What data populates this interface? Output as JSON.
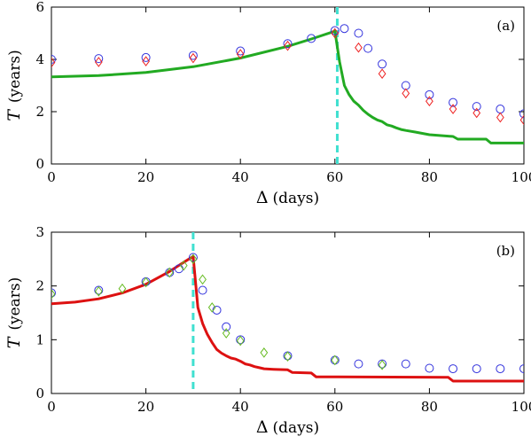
{
  "chart_data": [
    {
      "type": "scatter",
      "panel_label": "(a)",
      "xlabel_symbol": "Δ",
      "xlabel_unit": "(days)",
      "ylabel_symbol": "T",
      "ylabel_unit": "(years)",
      "xlim": [
        0,
        100
      ],
      "ylim": [
        0,
        6
      ],
      "xticks": [
        "0",
        "20",
        "40",
        "60",
        "80",
        "100"
      ],
      "yticks": [
        "0",
        "2",
        "4",
        "6"
      ],
      "xtick_values": [
        0,
        20,
        40,
        60,
        80,
        100
      ],
      "ytick_values": [
        0,
        2,
        4,
        6
      ],
      "vline": {
        "x": 60.5,
        "color": "#40e0d0"
      },
      "series": [
        {
          "kind": "line",
          "color": "#22aa22",
          "points": [
            [
              0,
              3.33
            ],
            [
              10,
              3.38
            ],
            [
              20,
              3.5
            ],
            [
              30,
              3.72
            ],
            [
              40,
              4.05
            ],
            [
              50,
              4.5
            ],
            [
              55,
              4.78
            ],
            [
              59,
              5.02
            ],
            [
              60,
              5.08
            ],
            [
              61,
              3.9
            ],
            [
              62,
              3.0
            ],
            [
              63,
              2.65
            ],
            [
              64,
              2.4
            ],
            [
              65,
              2.25
            ],
            [
              66,
              2.05
            ],
            [
              67,
              1.9
            ],
            [
              68,
              1.78
            ],
            [
              69,
              1.68
            ],
            [
              70,
              1.62
            ],
            [
              71,
              1.5
            ],
            [
              72,
              1.45
            ],
            [
              73,
              1.38
            ],
            [
              74,
              1.32
            ],
            [
              75,
              1.28
            ],
            [
              77,
              1.22
            ],
            [
              80,
              1.12
            ],
            [
              85,
              1.05
            ],
            [
              86,
              0.95
            ],
            [
              92,
              0.95
            ],
            [
              93,
              0.8
            ],
            [
              100,
              0.8
            ]
          ]
        },
        {
          "kind": "circle",
          "color": "#3333dd",
          "points": [
            [
              0,
              4.0
            ],
            [
              10,
              4.03
            ],
            [
              20,
              4.07
            ],
            [
              30,
              4.15
            ],
            [
              40,
              4.32
            ],
            [
              50,
              4.6
            ],
            [
              55,
              4.8
            ],
            [
              60,
              5.1
            ],
            [
              62,
              5.18
            ],
            [
              65,
              5.0
            ],
            [
              67,
              4.42
            ],
            [
              70,
              3.82
            ],
            [
              75,
              3.0
            ],
            [
              80,
              2.65
            ],
            [
              85,
              2.35
            ],
            [
              90,
              2.2
            ],
            [
              95,
              2.1
            ],
            [
              100,
              1.92
            ]
          ]
        },
        {
          "kind": "diamond",
          "color": "#ee2222",
          "points": [
            [
              0,
              3.88
            ],
            [
              10,
              3.9
            ],
            [
              20,
              3.93
            ],
            [
              30,
              4.05
            ],
            [
              40,
              4.2
            ],
            [
              50,
              4.52
            ],
            [
              60,
              5.0
            ],
            [
              65,
              4.45
            ],
            [
              70,
              3.45
            ],
            [
              75,
              2.7
            ],
            [
              80,
              2.4
            ],
            [
              85,
              2.1
            ],
            [
              90,
              1.95
            ],
            [
              95,
              1.78
            ],
            [
              100,
              1.68
            ]
          ]
        }
      ]
    },
    {
      "type": "scatter",
      "panel_label": "(b)",
      "xlabel_symbol": "Δ",
      "xlabel_unit": "(days)",
      "ylabel_symbol": "T",
      "ylabel_unit": "(years)",
      "xlim": [
        0,
        100
      ],
      "ylim": [
        0,
        3
      ],
      "xticks": [
        "0",
        "20",
        "40",
        "60",
        "80",
        "100"
      ],
      "yticks": [
        "0",
        "1",
        "2",
        "3"
      ],
      "xtick_values": [
        0,
        20,
        40,
        60,
        80,
        100
      ],
      "ytick_values": [
        0,
        1,
        2,
        3
      ],
      "vline": {
        "x": 30,
        "color": "#40e0d0"
      },
      "series": [
        {
          "kind": "line",
          "color": "#dd1111",
          "points": [
            [
              0,
              1.67
            ],
            [
              5,
              1.7
            ],
            [
              10,
              1.76
            ],
            [
              15,
              1.87
            ],
            [
              20,
              2.03
            ],
            [
              25,
              2.27
            ],
            [
              28,
              2.44
            ],
            [
              30,
              2.55
            ],
            [
              31,
              1.6
            ],
            [
              32,
              1.3
            ],
            [
              33,
              1.1
            ],
            [
              34,
              0.95
            ],
            [
              35,
              0.82
            ],
            [
              36,
              0.75
            ],
            [
              37,
              0.7
            ],
            [
              38,
              0.66
            ],
            [
              39,
              0.64
            ],
            [
              40,
              0.6
            ],
            [
              41,
              0.55
            ],
            [
              42,
              0.53
            ],
            [
              43,
              0.5
            ],
            [
              44,
              0.48
            ],
            [
              45,
              0.46
            ],
            [
              47,
              0.45
            ],
            [
              50,
              0.44
            ],
            [
              51,
              0.39
            ],
            [
              55,
              0.38
            ],
            [
              56,
              0.31
            ],
            [
              84,
              0.3
            ],
            [
              85,
              0.23
            ],
            [
              100,
              0.23
            ]
          ]
        },
        {
          "kind": "circle",
          "color": "#3333dd",
          "points": [
            [
              0,
              1.87
            ],
            [
              10,
              1.92
            ],
            [
              20,
              2.08
            ],
            [
              25,
              2.25
            ],
            [
              27,
              2.32
            ],
            [
              30,
              2.53
            ],
            [
              32,
              1.92
            ],
            [
              35,
              1.55
            ],
            [
              37,
              1.24
            ],
            [
              40,
              1.0
            ],
            [
              50,
              0.7
            ],
            [
              60,
              0.62
            ],
            [
              65,
              0.55
            ],
            [
              70,
              0.55
            ],
            [
              75,
              0.55
            ],
            [
              80,
              0.47
            ],
            [
              85,
              0.46
            ],
            [
              90,
              0.46
            ],
            [
              95,
              0.46
            ],
            [
              100,
              0.46
            ]
          ]
        },
        {
          "kind": "diamond",
          "color": "#66bb22",
          "points": [
            [
              0,
              1.85
            ],
            [
              10,
              1.9
            ],
            [
              15,
              1.95
            ],
            [
              20,
              2.07
            ],
            [
              25,
              2.25
            ],
            [
              28,
              2.38
            ],
            [
              30,
              2.5
            ],
            [
              32,
              2.12
            ],
            [
              34,
              1.6
            ],
            [
              37,
              1.12
            ],
            [
              40,
              0.98
            ],
            [
              45,
              0.76
            ],
            [
              50,
              0.69
            ],
            [
              60,
              0.62
            ],
            [
              70,
              0.53
            ]
          ]
        }
      ]
    }
  ]
}
